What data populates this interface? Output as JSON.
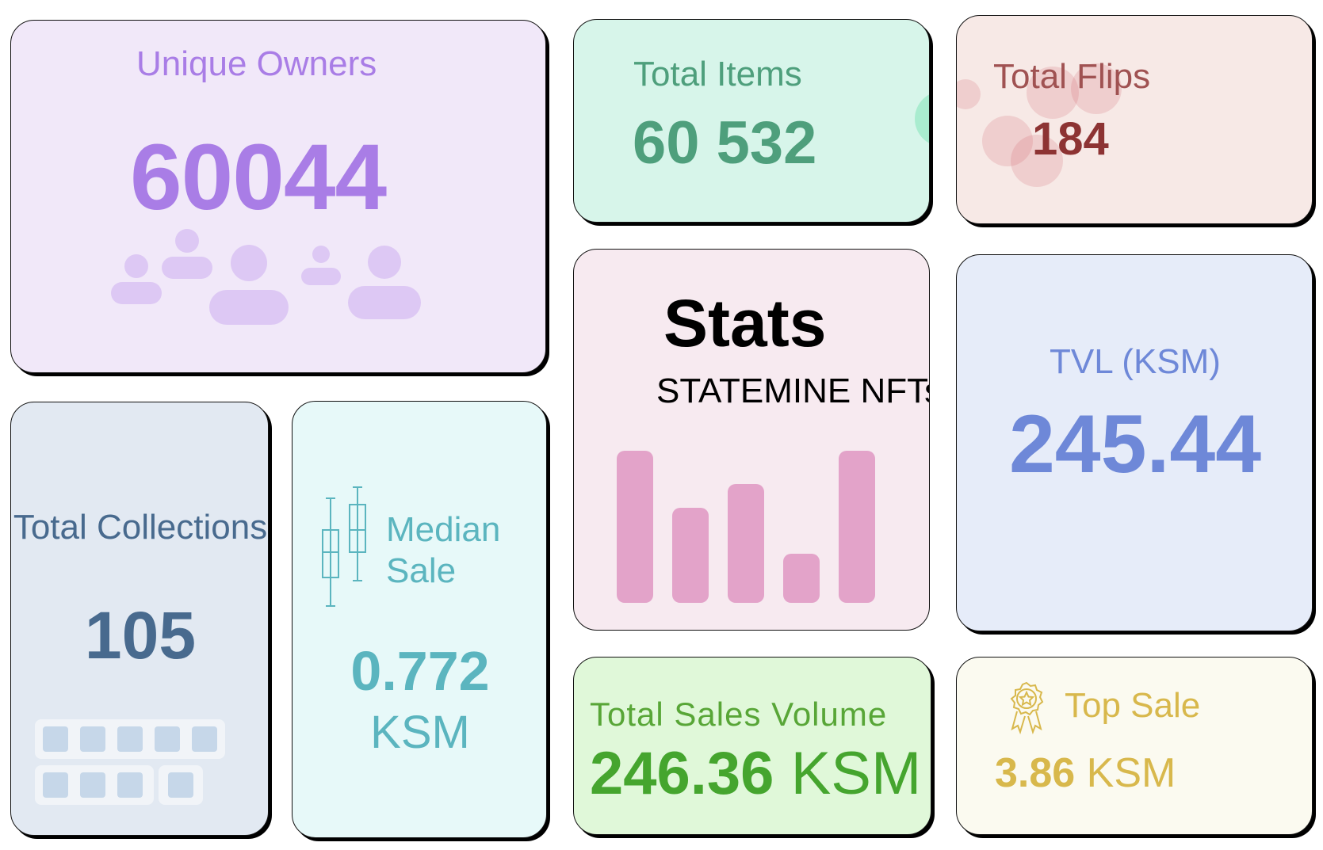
{
  "cards": {
    "unique_owners": {
      "label": "Unique Owners",
      "value": "60044",
      "icon": "people-group-icon"
    },
    "total_items": {
      "label": "Total Items",
      "value": "60 532"
    },
    "total_flips": {
      "label": "Total Flips",
      "value": "184"
    },
    "stats": {
      "title": "Stats",
      "subtitle": "STATEMINE NFTs",
      "icon": "bar-chart-icon"
    },
    "tvl": {
      "label": "TVL (KSM)",
      "value": "245.44"
    },
    "total_collections": {
      "label": "Total Collections",
      "value": "105",
      "icon": "grid-keys-icon"
    },
    "median_sale": {
      "label": "Median Sale",
      "value": "0.772",
      "unit": "KSM",
      "icon": "candlestick-icon"
    },
    "total_sales_volume": {
      "label": "Total Sales Volume",
      "value": "246.36",
      "unit": "KSM"
    },
    "top_sale": {
      "label": "Top Sale",
      "value": "3.86",
      "unit": "KSM",
      "icon": "award-badge-icon"
    }
  },
  "colors": {
    "unique_owners": "#a97de6",
    "total_items": "#4e9f7c",
    "total_flips": "#a05252",
    "stats_bars": "#e3a3c9",
    "tvl": "#6e88d8",
    "total_collections": "#486a8e",
    "median_sale": "#5bb5bf",
    "total_sales_volume": "#45a52e",
    "top_sale": "#d8b84c"
  }
}
